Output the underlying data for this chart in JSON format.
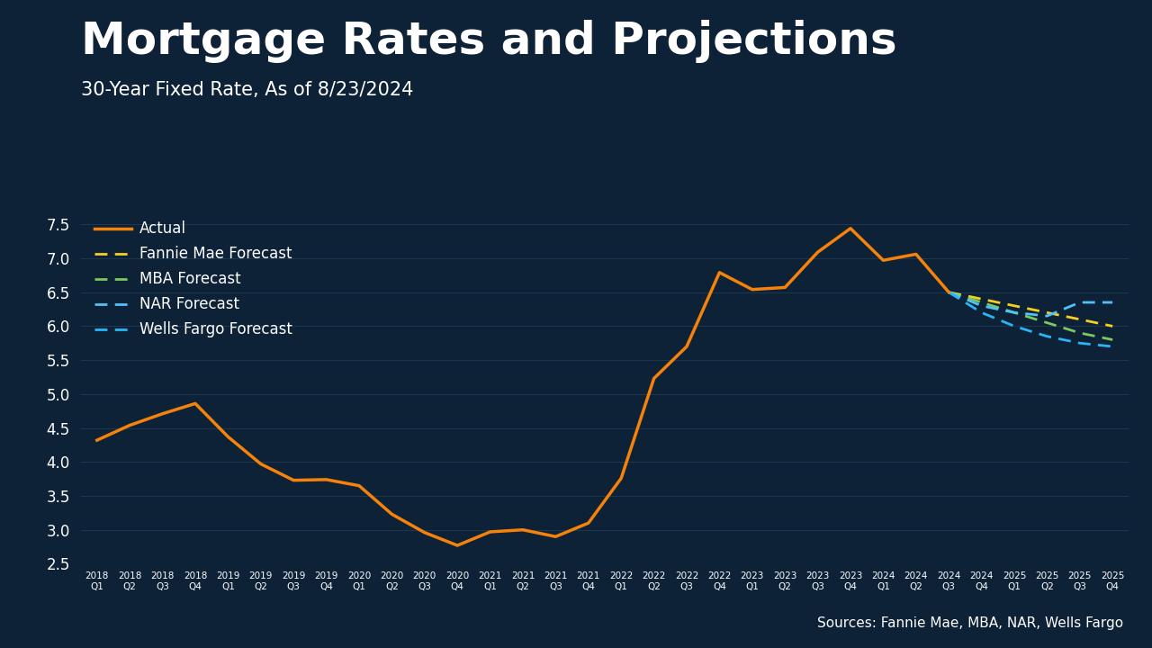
{
  "background_color": "#0d2137",
  "title": "Mortgage Rates and Projections",
  "subtitle": "30-Year Fixed Rate, As of 8/23/2024",
  "source_text": "Sources: Fannie Mae, MBA, NAR, Wells Fargo",
  "title_fontsize": 36,
  "subtitle_fontsize": 15,
  "ylim": [
    2.5,
    7.75
  ],
  "yticks": [
    2.5,
    3.0,
    3.5,
    4.0,
    4.5,
    5.0,
    5.5,
    6.0,
    6.5,
    7.0,
    7.5
  ],
  "actual_color": "#f5820a",
  "fannie_color": "#f5d020",
  "mba_color": "#7dc95e",
  "nar_color": "#4fc3f7",
  "wells_color": "#29b6f6",
  "actual_data": {
    "quarters": [
      "2018Q1",
      "2018Q2",
      "2018Q3",
      "2018Q4",
      "2019Q1",
      "2019Q2",
      "2019Q3",
      "2019Q4",
      "2020Q1",
      "2020Q2",
      "2020Q3",
      "2020Q4",
      "2021Q1",
      "2021Q2",
      "2021Q3",
      "2021Q4",
      "2022Q1",
      "2022Q2",
      "2022Q3",
      "2022Q4",
      "2023Q1",
      "2023Q2",
      "2023Q3",
      "2023Q4",
      "2024Q1",
      "2024Q2",
      "2024Q3"
    ],
    "values": [
      4.32,
      4.54,
      4.71,
      4.86,
      4.37,
      3.97,
      3.73,
      3.74,
      3.65,
      3.23,
      2.96,
      2.77,
      2.97,
      3.0,
      2.9,
      3.1,
      3.76,
      5.23,
      5.7,
      6.79,
      6.54,
      6.57,
      7.09,
      7.44,
      6.97,
      7.06,
      6.5
    ]
  },
  "fannie_forecast": {
    "quarters": [
      "2024Q3",
      "2024Q4",
      "2025Q1",
      "2025Q2",
      "2025Q3",
      "2025Q4"
    ],
    "values": [
      6.5,
      6.4,
      6.3,
      6.2,
      6.1,
      6.0
    ]
  },
  "mba_forecast": {
    "quarters": [
      "2024Q3",
      "2024Q4",
      "2025Q1",
      "2025Q2",
      "2025Q3",
      "2025Q4"
    ],
    "values": [
      6.5,
      6.35,
      6.2,
      6.05,
      5.9,
      5.8
    ]
  },
  "nar_forecast": {
    "quarters": [
      "2024Q3",
      "2024Q4",
      "2025Q1",
      "2025Q2",
      "2025Q3",
      "2025Q4"
    ],
    "values": [
      6.5,
      6.3,
      6.2,
      6.15,
      6.35,
      6.35
    ]
  },
  "wells_forecast": {
    "quarters": [
      "2024Q3",
      "2024Q4",
      "2025Q1",
      "2025Q2",
      "2025Q3",
      "2025Q4"
    ],
    "values": [
      6.5,
      6.2,
      6.0,
      5.85,
      5.75,
      5.7
    ]
  },
  "legend_entries": [
    "Actual",
    "Fannie Mae Forecast",
    "MBA Forecast",
    "NAR Forecast",
    "Wells Fargo Forecast"
  ],
  "text_color": "#ffffff",
  "grid_color": "#1e3a5f",
  "axis_color": "#3a6080",
  "source_bar_color": "#1a5276"
}
